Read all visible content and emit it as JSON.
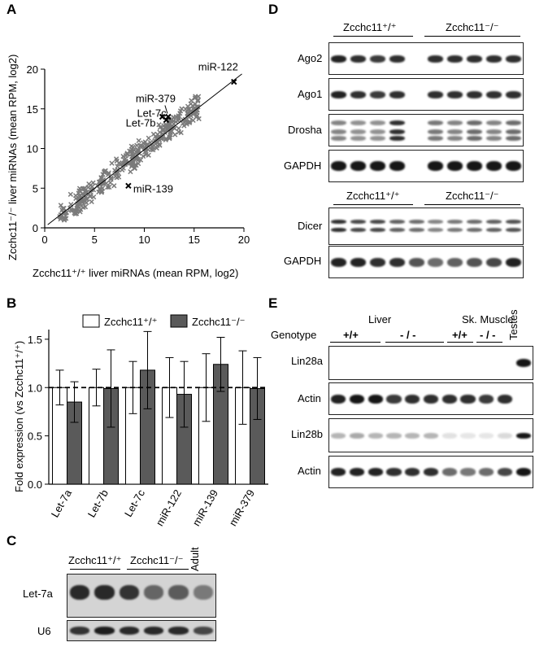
{
  "panels": {
    "A": "A",
    "B": "B",
    "C": "C",
    "D": "D",
    "E": "E"
  },
  "panelA": {
    "chart_data": {
      "type": "scatter",
      "xlabel": "Zcchc11⁺/⁺ liver miRNAs (mean RPM, log2)",
      "ylabel": "Zcchc11⁻/⁻ liver miRNAs (mean RPM, log2)",
      "xlim": [
        0,
        20
      ],
      "ylim": [
        0,
        20
      ],
      "xticks": [
        "0",
        "5",
        "10",
        "15",
        "20"
      ],
      "yticks": [
        "0",
        "5",
        "10",
        "15",
        "20"
      ],
      "highlighted": [
        {
          "label": "miR-122",
          "x": 19.0,
          "y": 18.4
        },
        {
          "label": "miR-379",
          "x": 12.4,
          "y": 14.0
        },
        {
          "label": "Let-7c",
          "x": 12.2,
          "y": 13.6
        },
        {
          "label": "Let-7b",
          "x": 11.8,
          "y": 14.0
        },
        {
          "label": "miR-139",
          "x": 8.4,
          "y": 5.3
        }
      ]
    }
  },
  "panelB": {
    "chart_data": {
      "type": "bar",
      "categories": [
        "Let-7a",
        "Let-7b",
        "Let-7c",
        "miR-122",
        "miR-139",
        "miR-379"
      ],
      "series": [
        {
          "name": "Zcchc11⁺/⁺",
          "values": [
            1.0,
            1.0,
            1.0,
            1.0,
            1.0,
            1.0
          ],
          "errors": [
            0.18,
            0.19,
            0.27,
            0.31,
            0.35,
            0.38
          ],
          "color": "#ffffff"
        },
        {
          "name": "Zcchc11⁻/⁻",
          "values": [
            0.85,
            0.99,
            1.18,
            0.93,
            1.24,
            0.99
          ],
          "errors": [
            0.21,
            0.4,
            0.4,
            0.34,
            0.28,
            0.32
          ],
          "color": "#5a5a5a"
        }
      ],
      "ylabel": "Fold expression (vs Zcchc11⁺/⁺)",
      "ylim": [
        0,
        1.6
      ],
      "yticks": [
        "0.0",
        "0.5",
        "1.0",
        "1.5"
      ],
      "reference_line": 1.0
    }
  },
  "panelC": {
    "groups": [
      "Zcchc11⁺/⁺",
      "Zcchc11⁻/⁻"
    ],
    "adult": "Adult",
    "rows": [
      "Let-7a",
      "U6"
    ]
  },
  "panelD": {
    "groups_top": [
      "Zcchc11⁺/⁺",
      "Zcchc11⁻/⁻"
    ],
    "groups_bottom": [
      "Zcchc11⁺/⁺",
      "Zcchc11⁻/⁻"
    ],
    "rows_top": [
      "Ago2",
      "Ago1",
      "Drosha",
      "GAPDH"
    ],
    "rows_bottom": [
      "Dicer",
      "GAPDH"
    ]
  },
  "panelE": {
    "tissues": [
      "Liver",
      "Sk. Muscle",
      "Testes"
    ],
    "genotype_label": "Genotype",
    "genotypes": [
      "+/+",
      "- / -",
      "+/+",
      "- / -"
    ],
    "rows": [
      "Lin28a",
      "Actin",
      "Lin28b",
      "Actin"
    ]
  }
}
